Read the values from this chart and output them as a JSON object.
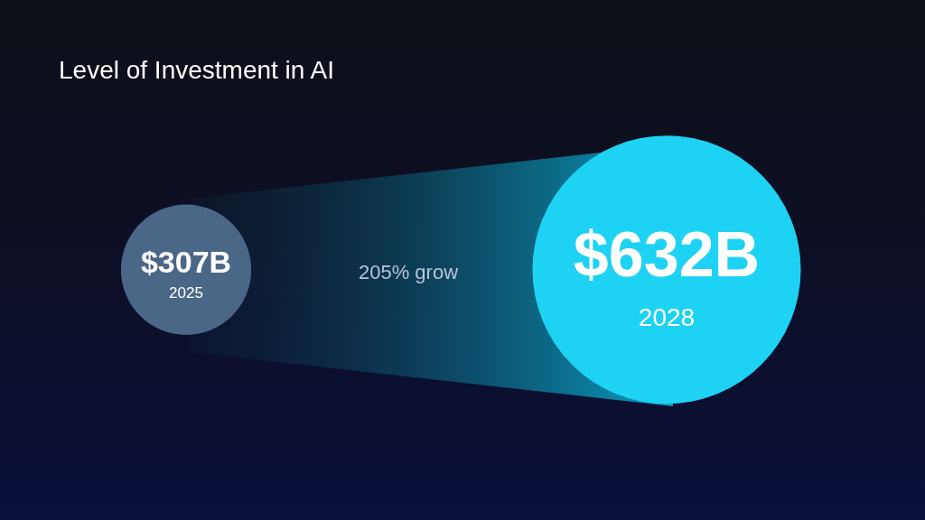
{
  "chart_data": {
    "type": "other",
    "title": "Level of Investment in AI",
    "categories": [
      "2025",
      "2028"
    ],
    "values": [
      307,
      632
    ],
    "value_labels": [
      "$307B",
      "$632B"
    ],
    "colors": [
      "#4a6787",
      "#1ed2f4"
    ],
    "annotations": [
      "205% grow"
    ]
  }
}
